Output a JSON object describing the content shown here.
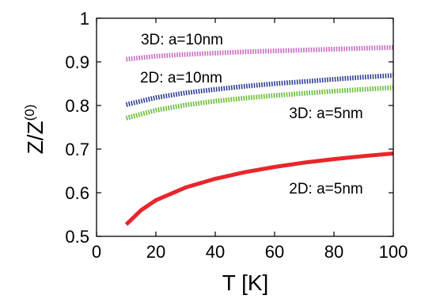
{
  "chart_data": {
    "type": "line",
    "title": "",
    "xlabel": "T [K]",
    "ylabel": {
      "main": "Z/Z",
      "superscript": "(0)"
    },
    "xlim": [
      0,
      100
    ],
    "ylim": [
      0.5,
      1.0
    ],
    "xticks": [
      "0",
      "20",
      "40",
      "60",
      "80",
      "100"
    ],
    "yticks": [
      "0.5",
      "0.6",
      "0.7",
      "0.8",
      "0.9",
      "1"
    ],
    "grid": false,
    "legend": "none",
    "series": [
      {
        "name": "3D: a=10nm",
        "color": "#c86bc0",
        "style": "dotted",
        "x": [
          10,
          20,
          30,
          40,
          50,
          60,
          70,
          80,
          90,
          100
        ],
        "y": [
          0.906,
          0.913,
          0.917,
          0.92,
          0.923,
          0.925,
          0.927,
          0.929,
          0.931,
          0.933
        ]
      },
      {
        "name": "2D: a=10nm",
        "color": "#2e3f94",
        "style": "dotted",
        "x": [
          10,
          20,
          30,
          40,
          50,
          60,
          70,
          80,
          90,
          100
        ],
        "y": [
          0.802,
          0.818,
          0.829,
          0.837,
          0.844,
          0.85,
          0.855,
          0.86,
          0.865,
          0.869
        ]
      },
      {
        "name": "3D: a=5nm",
        "color": "#66bb33",
        "style": "dotted",
        "x": [
          10,
          20,
          30,
          40,
          50,
          60,
          70,
          80,
          90,
          100
        ],
        "y": [
          0.771,
          0.789,
          0.801,
          0.81,
          0.817,
          0.823,
          0.828,
          0.833,
          0.837,
          0.841
        ]
      },
      {
        "name": "2D: a=5nm",
        "color": "#e8262b",
        "style": "solid",
        "x": [
          10,
          15,
          20,
          30,
          40,
          50,
          60,
          70,
          80,
          90,
          100
        ],
        "y": [
          0.527,
          0.56,
          0.583,
          0.612,
          0.632,
          0.647,
          0.659,
          0.669,
          0.677,
          0.684,
          0.69
        ]
      }
    ]
  }
}
